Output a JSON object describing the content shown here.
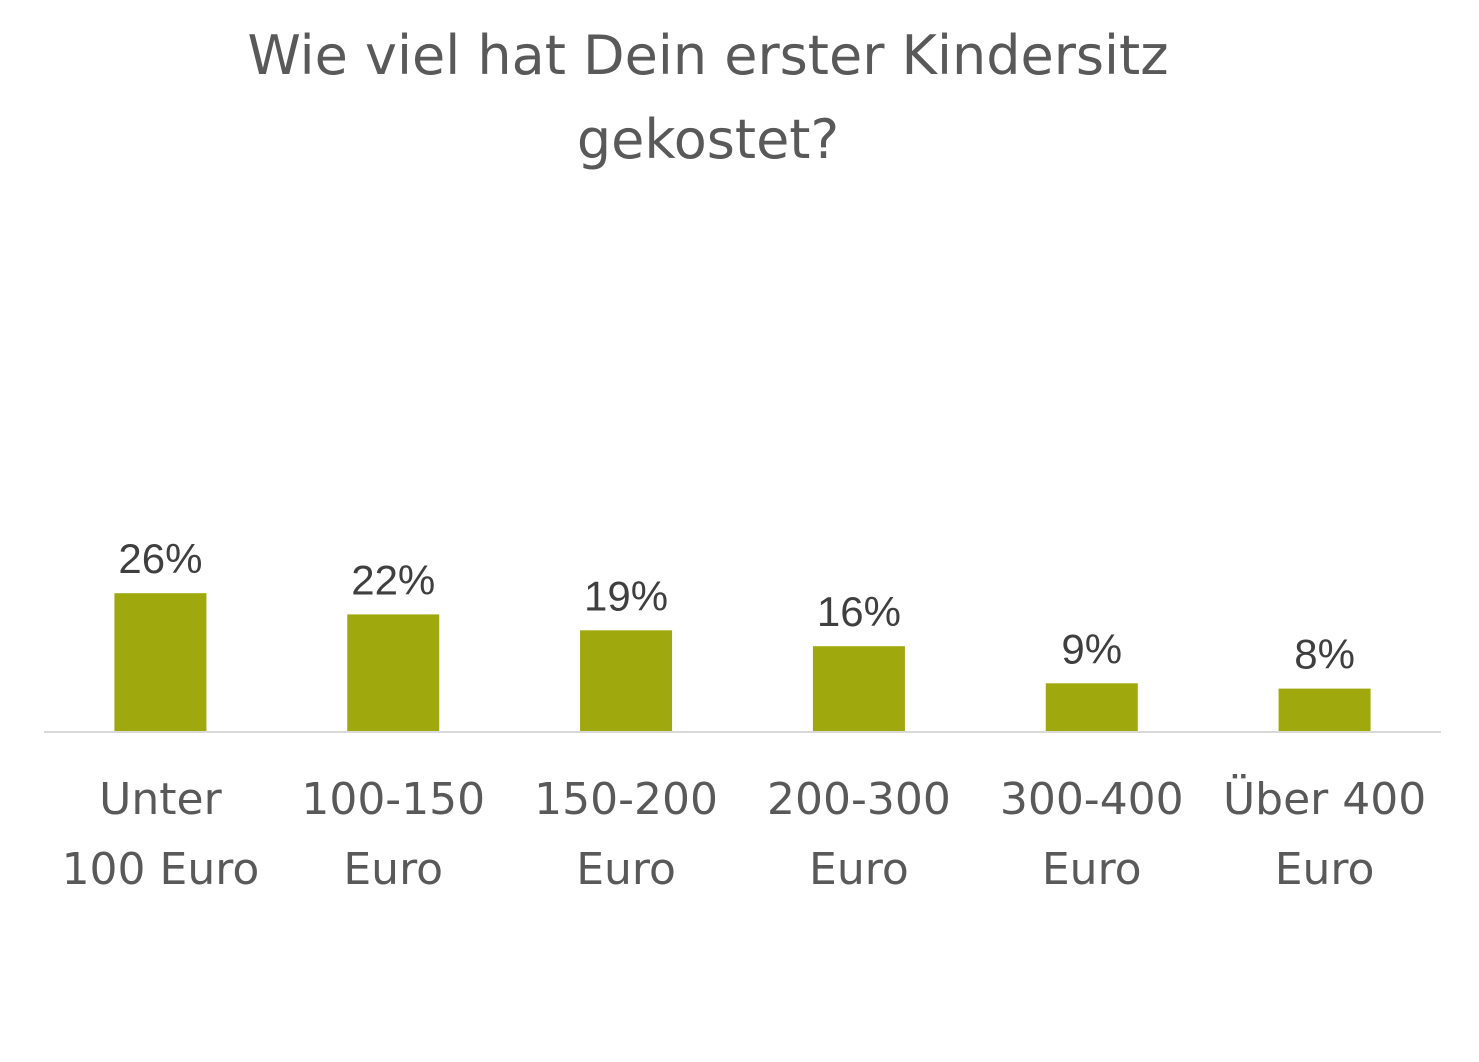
{
  "chart_data": {
    "type": "bar",
    "title": "Wie viel hat Dein erster Kindersitz gekostet?",
    "title_lines": [
      "Wie viel hat Dein erster Kindersitz",
      "gekostet?"
    ],
    "categories": [
      [
        "Unter",
        "100 Euro"
      ],
      [
        "100-150",
        "Euro"
      ],
      [
        "150-200",
        "Euro"
      ],
      [
        "200-300",
        "Euro"
      ],
      [
        "300-400",
        "Euro"
      ],
      [
        "Über 400",
        "Euro"
      ]
    ],
    "values": [
      26,
      22,
      19,
      16,
      9,
      8
    ],
    "value_labels": [
      "26%",
      "22%",
      "19%",
      "16%",
      "9%",
      "8%"
    ],
    "unit": "%",
    "ylim": [
      0,
      70
    ],
    "grid": false,
    "legend": "none",
    "colors": {
      "bar": "#9fa80d",
      "axis": "#d9d9d9",
      "label": "#3f3f3f",
      "category": "#595959",
      "title": "#595959"
    }
  }
}
